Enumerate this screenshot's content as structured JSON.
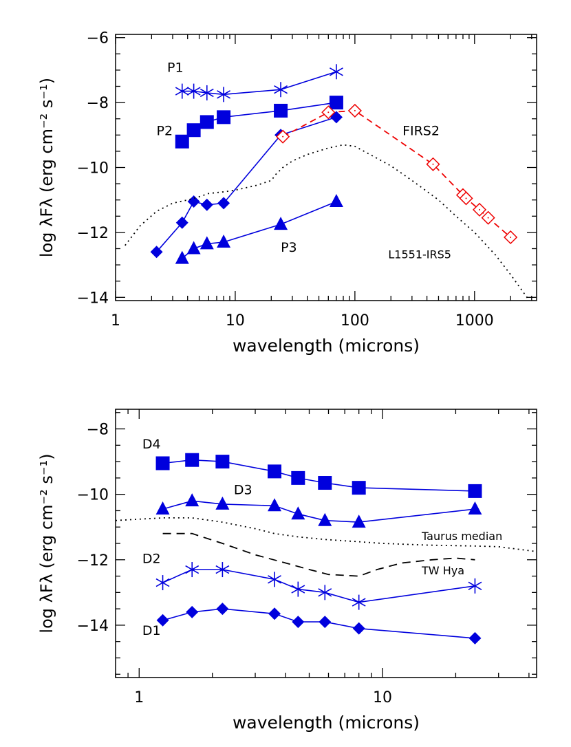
{
  "chart_data": [
    {
      "type": "line",
      "xscale": "log",
      "xlim": [
        1,
        3300
      ],
      "ylim": [
        -14.1,
        -5.9
      ],
      "xlabel": "wavelength (microns)",
      "ylabel": "log λFλ (erg cm⁻² s⁻¹)",
      "xticks": [
        1,
        10,
        100,
        1000
      ],
      "xticklabels": [
        "1",
        "10",
        "100",
        "1000"
      ],
      "yticks": [
        -14,
        -12,
        -10,
        -8,
        -6
      ],
      "yticklabels": [
        "−14",
        "−12",
        "−10",
        "−8",
        "−6"
      ],
      "series": [
        {
          "name": "P1",
          "marker": "asterisk",
          "color": "#0000dd",
          "line": "solid",
          "x": [
            3.6,
            4.5,
            5.8,
            8.0,
            24,
            70
          ],
          "y": [
            -7.65,
            -7.65,
            -7.7,
            -7.75,
            -7.6,
            -7.05
          ]
        },
        {
          "name": "P2",
          "marker": "square",
          "color": "#0000dd",
          "line": "solid",
          "x": [
            3.6,
            4.5,
            5.8,
            8.0,
            24,
            70
          ],
          "y": [
            -9.2,
            -8.85,
            -8.6,
            -8.45,
            -8.25,
            -8.0
          ]
        },
        {
          "name": "",
          "marker": "diamond",
          "color": "#0000dd",
          "line": "solid",
          "x": [
            2.2,
            3.6,
            4.5,
            5.8,
            8.0,
            24,
            70
          ],
          "y": [
            -12.6,
            -11.7,
            -11.05,
            -11.15,
            -11.1,
            -9.0,
            -8.45
          ]
        },
        {
          "name": "P3",
          "marker": "triangle",
          "color": "#0000dd",
          "line": "solid",
          "x": [
            3.6,
            4.5,
            5.8,
            8.0,
            24,
            70
          ],
          "y": [
            -12.8,
            -12.5,
            -12.35,
            -12.3,
            -11.75,
            -11.05
          ]
        },
        {
          "name": "FIRS2",
          "marker": "open-diamond",
          "color": "#ee0000",
          "line": "dashed",
          "x": [
            25,
            60,
            100,
            450,
            800,
            850,
            1100,
            1300,
            2000
          ],
          "y": [
            -9.05,
            -8.3,
            -8.25,
            -9.9,
            -10.85,
            -10.95,
            -11.3,
            -11.55,
            -12.15
          ]
        },
        {
          "name": "L1551-IRS5",
          "marker": "none",
          "color": "#000000",
          "line": "dotted",
          "x": [
            1.2,
            1.6,
            2.2,
            3.0,
            4.0,
            5.0,
            6.0,
            8.0,
            10,
            15,
            20,
            22,
            25,
            30,
            40,
            60,
            80,
            100,
            150,
            200,
            300,
            500,
            700,
            1000,
            1500,
            2000,
            3000
          ],
          "y": [
            -12.4,
            -11.8,
            -11.35,
            -11.1,
            -11.0,
            -10.9,
            -10.8,
            -10.75,
            -10.7,
            -10.55,
            -10.4,
            -10.2,
            -10.0,
            -9.8,
            -9.6,
            -9.4,
            -9.3,
            -9.35,
            -9.7,
            -9.95,
            -10.4,
            -11.0,
            -11.5,
            -12.0,
            -12.7,
            -13.3,
            -14.2
          ]
        }
      ],
      "annotations": [
        {
          "text": "P1",
          "x": 2.7,
          "y": -7.05
        },
        {
          "text": "P2",
          "x": 2.2,
          "y": -9.0
        },
        {
          "text": "P3",
          "x": 24,
          "y": -12.6
        },
        {
          "text": "FIRS2",
          "x": 250,
          "y": -9.0
        },
        {
          "text": "L1551-IRS5",
          "x": 190,
          "y": -12.8
        }
      ]
    },
    {
      "type": "line",
      "xscale": "log",
      "xlim": [
        0.8,
        43
      ],
      "ylim": [
        -15.6,
        -7.4
      ],
      "xlabel": "wavelength (microns)",
      "ylabel": "log λFλ (erg cm⁻² s⁻¹)",
      "xticks": [
        1,
        10
      ],
      "xticklabels": [
        "1",
        "10"
      ],
      "yticks": [
        -14,
        -12,
        -10,
        -8
      ],
      "yticklabels": [
        "−14",
        "−12",
        "−10",
        "−8"
      ],
      "series": [
        {
          "name": "D4",
          "marker": "square",
          "color": "#0000dd",
          "line": "solid",
          "x": [
            1.25,
            1.65,
            2.2,
            3.6,
            4.5,
            5.8,
            8.0,
            24
          ],
          "y": [
            -9.05,
            -8.95,
            -9.0,
            -9.3,
            -9.5,
            -9.65,
            -9.8,
            -9.9
          ]
        },
        {
          "name": "D3",
          "marker": "triangle",
          "color": "#0000dd",
          "line": "solid",
          "x": [
            1.25,
            1.65,
            2.2,
            3.6,
            4.5,
            5.8,
            8.0,
            24
          ],
          "y": [
            -10.45,
            -10.2,
            -10.3,
            -10.35,
            -10.6,
            -10.8,
            -10.85,
            -10.45
          ]
        },
        {
          "name": "D2",
          "marker": "asterisk",
          "color": "#0000dd",
          "line": "solid",
          "x": [
            1.25,
            1.65,
            2.2,
            3.6,
            4.5,
            5.8,
            8.0,
            24
          ],
          "y": [
            -12.7,
            -12.3,
            -12.3,
            -12.6,
            -12.9,
            -13.0,
            -13.3,
            -12.8
          ]
        },
        {
          "name": "D1",
          "marker": "diamond",
          "color": "#0000dd",
          "line": "solid",
          "x": [
            1.25,
            1.65,
            2.2,
            3.6,
            4.5,
            5.8,
            8.0,
            24
          ],
          "y": [
            -13.85,
            -13.6,
            -13.5,
            -13.65,
            -13.9,
            -13.9,
            -14.1,
            -14.4
          ]
        },
        {
          "name": "Taurus median",
          "marker": "none",
          "color": "#000000",
          "line": "dotted",
          "x": [
            0.8,
            1.25,
            1.65,
            2.2,
            3.0,
            3.6,
            4.5,
            5.8,
            8.0,
            10,
            15,
            20,
            24,
            30,
            43
          ],
          "y": [
            -10.8,
            -10.72,
            -10.72,
            -10.85,
            -11.05,
            -11.2,
            -11.3,
            -11.38,
            -11.45,
            -11.5,
            -11.55,
            -11.57,
            -11.58,
            -11.6,
            -11.75
          ]
        },
        {
          "name": "TW Hya",
          "marker": "none",
          "color": "#000000",
          "line": "dashed",
          "x": [
            1.25,
            1.65,
            2.2,
            3.0,
            4.0,
            5.0,
            6.0,
            8.0,
            9.5,
            12,
            16,
            20,
            24
          ],
          "y": [
            -11.2,
            -11.2,
            -11.5,
            -11.85,
            -12.1,
            -12.3,
            -12.45,
            -12.5,
            -12.3,
            -12.1,
            -12.0,
            -11.95,
            -12.0
          ]
        }
      ],
      "annotations": [
        {
          "text": "D4",
          "x": 1.03,
          "y": -8.6
        },
        {
          "text": "D3",
          "x": 2.45,
          "y": -10.0
        },
        {
          "text": "D2",
          "x": 1.03,
          "y": -12.1
        },
        {
          "text": "D1",
          "x": 1.03,
          "y": -14.3
        },
        {
          "text": "Taurus median",
          "x": 14.5,
          "y": -11.4
        },
        {
          "text": "TW Hya",
          "x": 14.5,
          "y": -12.45
        }
      ]
    }
  ]
}
